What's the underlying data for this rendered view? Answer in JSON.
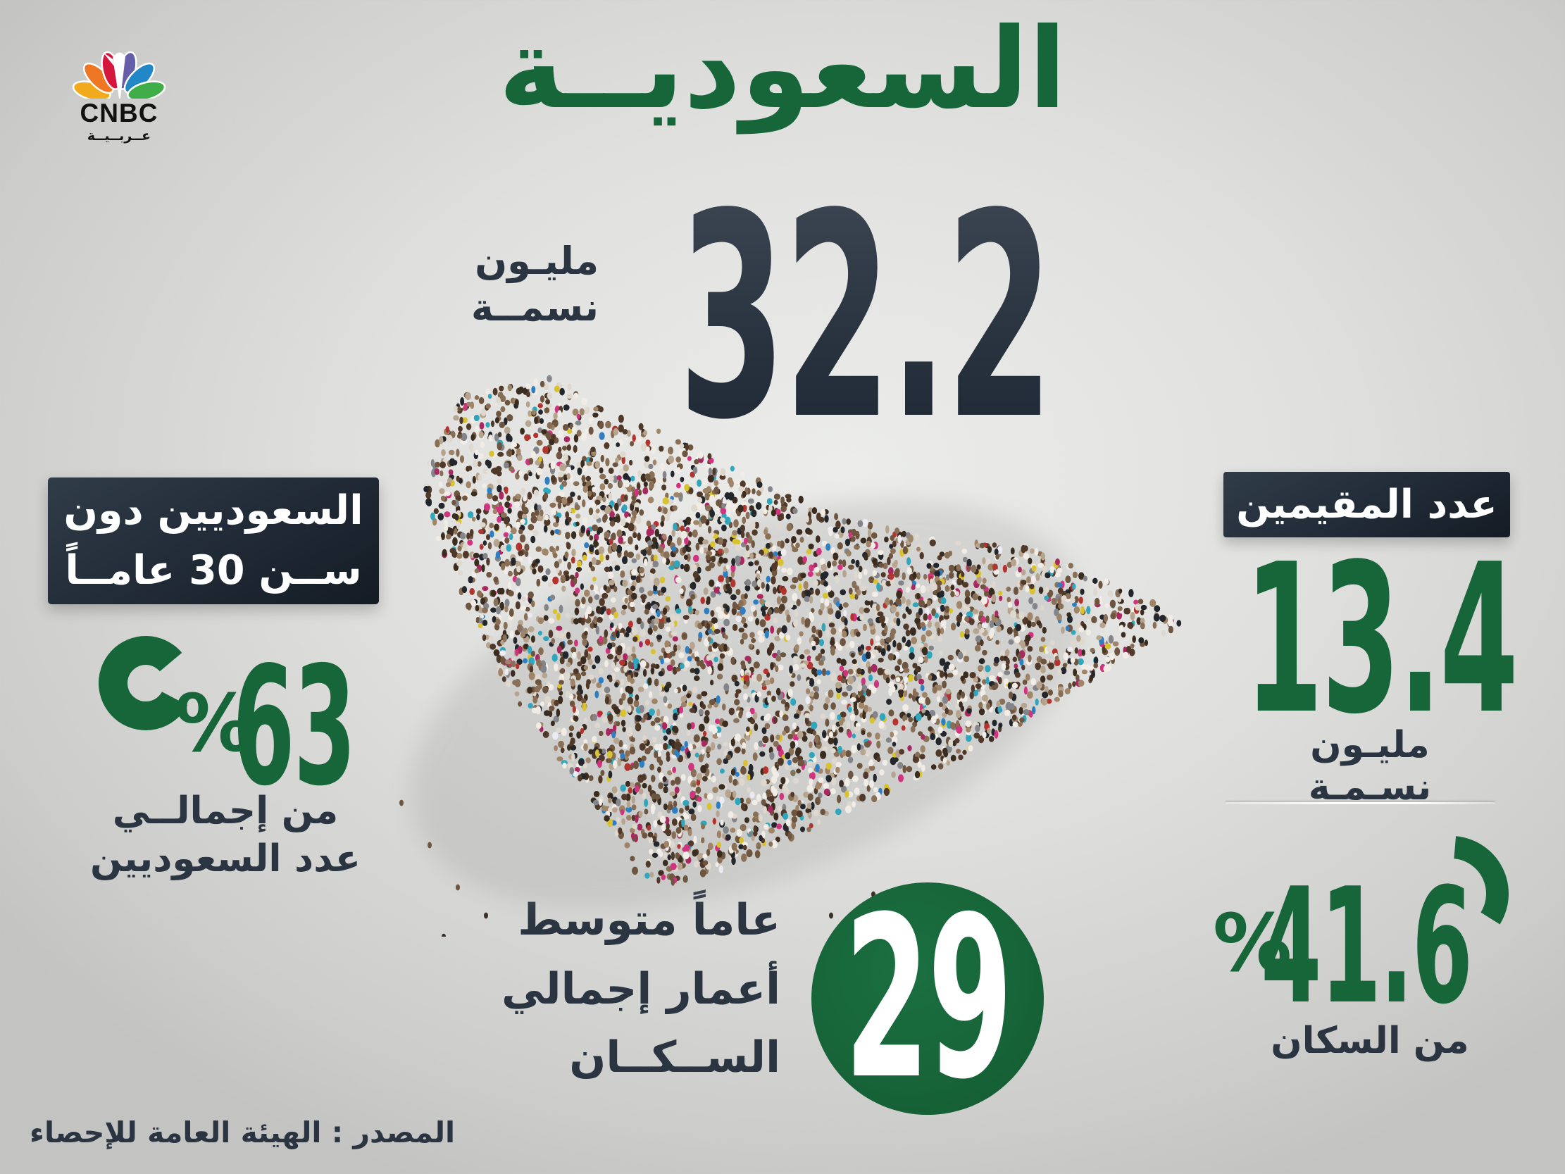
{
  "brand": {
    "name": "CNBC",
    "region": "عــربــيــة"
  },
  "header": {
    "title": "السعوديــة"
  },
  "population_total": {
    "value": "32.2",
    "unit_lines": [
      "مليـون",
      "نسمــة"
    ]
  },
  "under30": {
    "box_lines": [
      "السعوديين دون",
      "ســن 30 عامــاً"
    ],
    "percent_sign": "%",
    "percent": "63",
    "desc_lines": [
      "من إجمالــي",
      "عدد السعوديين"
    ]
  },
  "residents": {
    "box_label": "عدد المقيمين",
    "value": "13.4",
    "unit": "مليـون نسـمـة",
    "percent_sign": "%",
    "share_percent": "41.6",
    "share_desc": "من السكان"
  },
  "median_age": {
    "value": "29",
    "desc_lines": [
      "عاماً متوسط",
      "أعمار إجمالي",
      "الســكــان"
    ]
  },
  "source": "المصدر : الهيئة العامة للإحصاء",
  "colors": {
    "green": "#17663a",
    "dark_slate": "#2b3542",
    "box_background": "#1c2530",
    "background_gray": "#dcdcda"
  },
  "chart_data": {
    "type": "pie",
    "title": "السعودية - سكان",
    "figures": [
      {
        "label": "إجمالي السكان",
        "value": 32.2,
        "unit": "مليون نسمة"
      },
      {
        "label": "عدد المقيمين",
        "value": 13.4,
        "unit": "مليون نسمة",
        "percent_of_population": 41.6
      },
      {
        "label": "السعوديون دون سن 30 عاماً",
        "percent_of_saudis": 63
      },
      {
        "label": "متوسط أعمار إجمالي السكان",
        "value": 29,
        "unit": "عاماً"
      }
    ],
    "source": "الهيئة العامة للإحصاء"
  }
}
